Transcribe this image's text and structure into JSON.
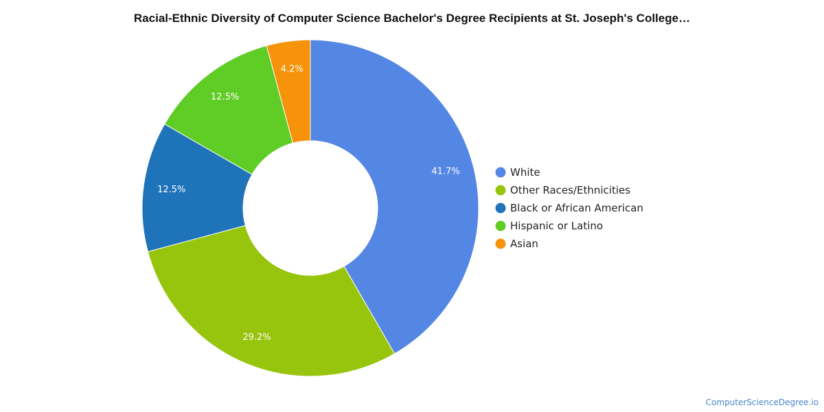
{
  "chart_data": {
    "type": "pie",
    "donut": true,
    "title": "Racial-Ethnic Diversity of Computer Science Bachelor's Degree Recipients at St. Joseph's College…",
    "legend_position": "right",
    "slices": [
      {
        "name": "White",
        "value": 41.7,
        "label": "41.7%",
        "color": "#5486e3"
      },
      {
        "name": "Other Races/Ethnicities",
        "value": 29.2,
        "label": "29.2%",
        "color": "#97c40d"
      },
      {
        "name": "Black or African American",
        "value": 12.5,
        "label": "12.5%",
        "color": "#1e73b9"
      },
      {
        "name": "Hispanic or Latino",
        "value": 12.5,
        "label": "12.5%",
        "color": "#60cc26"
      },
      {
        "name": "Asian",
        "value": 4.2,
        "label": "4.2%",
        "color": "#f7930a"
      }
    ]
  },
  "watermark": "ComputerScienceDegree.io"
}
